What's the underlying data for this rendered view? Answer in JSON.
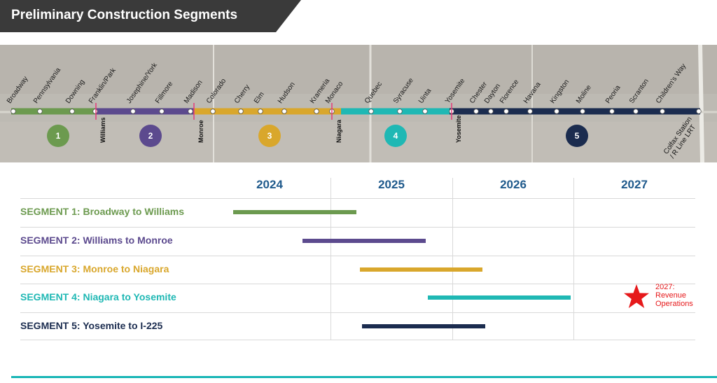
{
  "title": "Preliminary Construction Segments",
  "map": {
    "stations": [
      "Broadway",
      "Pennsylvania",
      "Downing",
      "Franklin/Park",
      "Josephine/York",
      "Fillmore",
      "Madison",
      "Colorado",
      "Cherry",
      "Elm",
      "Hudson",
      "Krameria",
      "Monaco",
      "Quebec",
      "Syracuse",
      "Uinta",
      "Yosemite",
      "Chester",
      "Dayton",
      "Florence",
      "Havana",
      "Kingston",
      "Moline",
      "Peoria",
      "Scranton",
      "Children's Way"
    ],
    "terminus_line1": "Colfax Station",
    "terminus_line2": "/ R Line LRT",
    "boundaries": [
      "Williams",
      "Monroe",
      "Niagara",
      "Yosemite"
    ],
    "segment_badges": [
      "1",
      "2",
      "3",
      "4",
      "5"
    ]
  },
  "schedule": {
    "years": [
      "2024",
      "2025",
      "2026",
      "2027"
    ],
    "year_start": 2024,
    "year_end": 2028,
    "segments": [
      {
        "label": "SEGMENT 1: Broadway to Williams",
        "color": "#6c9a4f",
        "start": 2024.2,
        "end": 2025.21
      },
      {
        "label": "SEGMENT 2: Williams to Monroe",
        "color": "#5c4a8e",
        "start": 2024.77,
        "end": 2025.78
      },
      {
        "label": "SEGMENT 3: Monroe to Niagara",
        "color": "#d9a72c",
        "start": 2025.24,
        "end": 2026.25
      },
      {
        "label": "SEGMENT 4: Niagara to Yosemite",
        "color": "#1fb8b4",
        "start": 2025.8,
        "end": 2026.97
      },
      {
        "label": "SEGMENT 5: Yosemite to I-225",
        "color": "#1b2c4f",
        "start": 2025.26,
        "end": 2026.27
      }
    ],
    "milestone_label_line1": "2027:",
    "milestone_label_line2": "Revenue",
    "milestone_label_line3": "Operations",
    "milestone_color": "#e6191b"
  },
  "colors": {
    "banner": "#3a3a3a",
    "year_header": "#1f5a8c",
    "footer": "#17b5b5"
  }
}
